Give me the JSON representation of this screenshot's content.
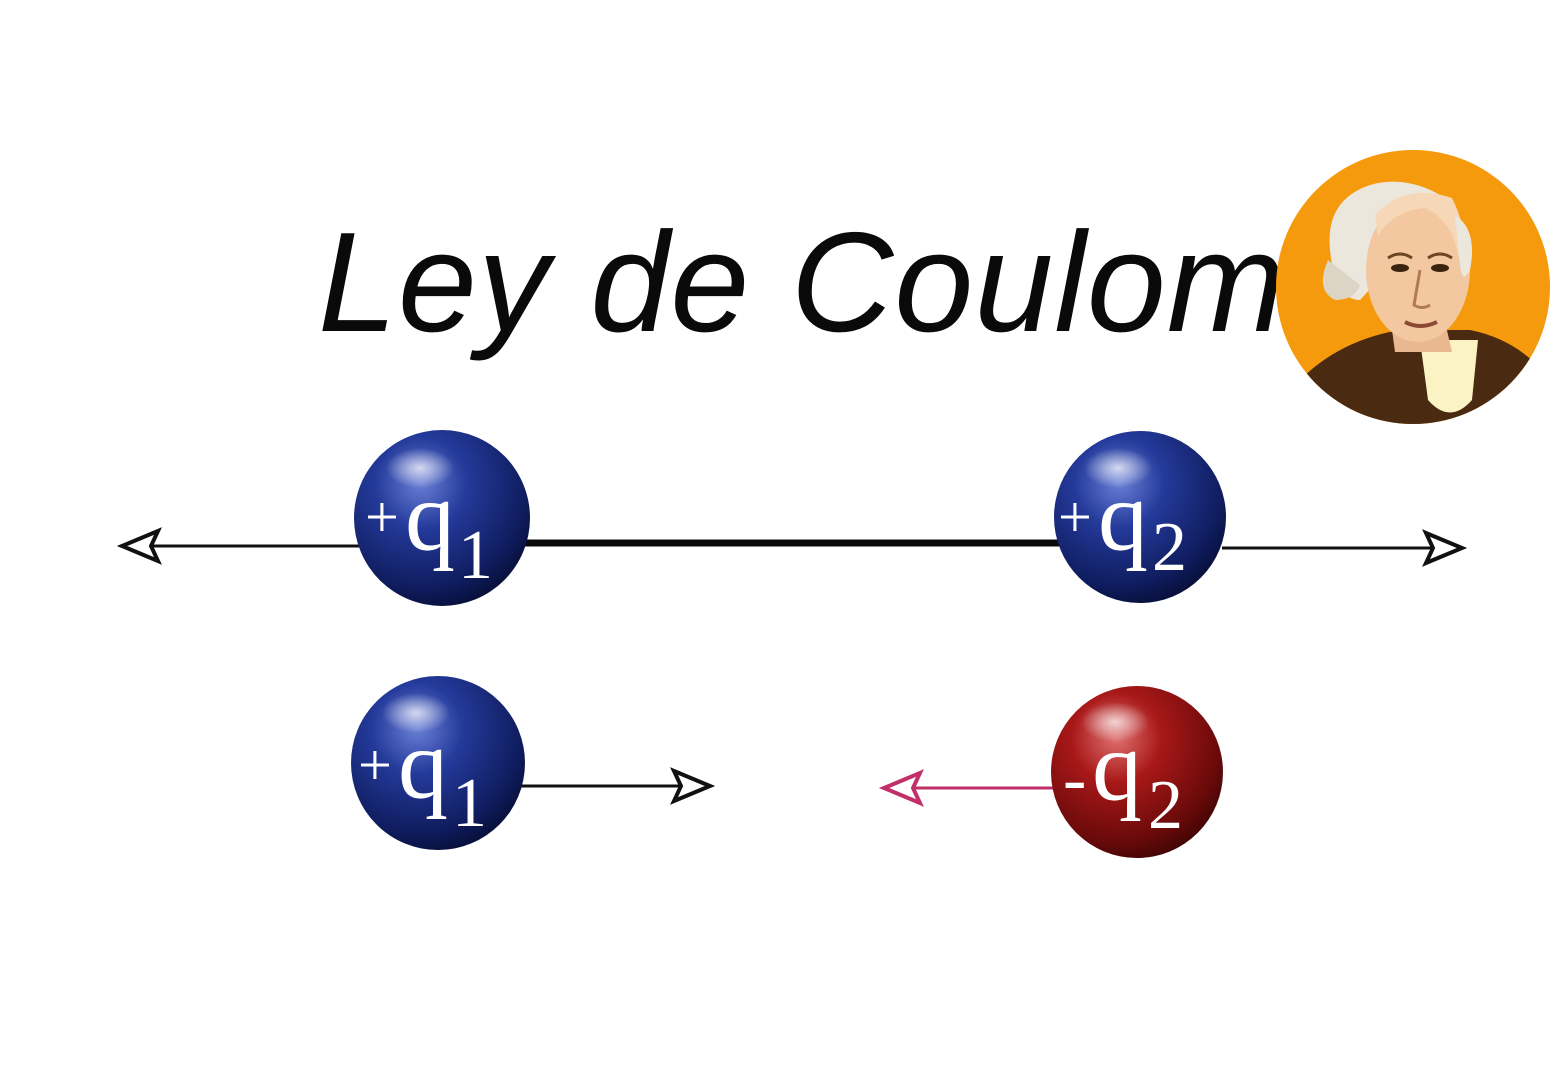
{
  "title": "Ley de Coulomb",
  "portrait": {
    "icon": "coulomb-portrait-icon",
    "background_color": "#f59a0c"
  },
  "rows": [
    {
      "interaction": "repulsion",
      "charges": [
        {
          "sign": "+",
          "letter": "q",
          "index": "1",
          "color": "#1a2a7a"
        },
        {
          "sign": "+",
          "letter": "q",
          "index": "2",
          "color": "#1a2a7a"
        }
      ],
      "force_arrow_color": "#111111"
    },
    {
      "interaction": "attraction",
      "charges": [
        {
          "sign": "+",
          "letter": "q",
          "index": "1",
          "color": "#1a2a7a"
        },
        {
          "sign": "-",
          "letter": "q",
          "index": "2",
          "color": "#8a1010"
        }
      ],
      "force_arrow_colors": [
        "#111111",
        "#c2306a"
      ]
    }
  ]
}
